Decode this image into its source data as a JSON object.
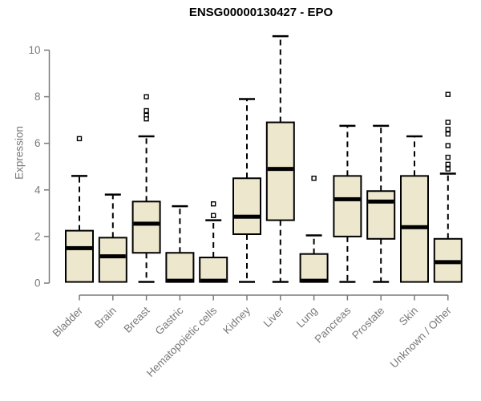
{
  "colors": {
    "background": "#FFFFFF",
    "title": "#000000",
    "axis": "#7A7A7A",
    "label": "#7A7A7A",
    "box_fill": "#EDE7CD",
    "box_stroke": "#000000",
    "median": "#000000",
    "whisker": "#000000",
    "outlier_fill": "#FFFFFF"
  },
  "chart_data": {
    "type": "boxplot",
    "title": "ENSG00000130427 - EPO",
    "xlabel": "",
    "ylabel": "Expression",
    "ylim": [
      0,
      10.7
    ],
    "yticks": [
      0,
      2,
      4,
      6,
      8,
      10
    ],
    "grid": false,
    "legend": "none",
    "categories": [
      "Bladder",
      "Brain",
      "Breast",
      "Gastric",
      "Hematopoietic cells",
      "Kidney",
      "Liver",
      "Lung",
      "Pancreas",
      "Prostate",
      "Skin",
      "Unknown / Other"
    ],
    "boxes": [
      {
        "label": "Bladder",
        "whisker_low": 0.05,
        "q1": 0.05,
        "median": 1.5,
        "q3": 2.25,
        "whisker_high": 4.6,
        "outliers": [
          6.2
        ]
      },
      {
        "label": "Brain",
        "whisker_low": 0.05,
        "q1": 0.05,
        "median": 1.15,
        "q3": 1.95,
        "whisker_high": 3.8,
        "outliers": []
      },
      {
        "label": "Breast",
        "whisker_low": 0.05,
        "q1": 1.3,
        "median": 2.55,
        "q3": 3.5,
        "whisker_high": 6.3,
        "outliers": [
          8.0,
          7.4,
          7.2,
          7.05
        ]
      },
      {
        "label": "Gastric",
        "whisker_low": 0.05,
        "q1": 0.05,
        "median": 0.1,
        "q3": 1.3,
        "whisker_high": 3.3,
        "outliers": []
      },
      {
        "label": "Hematopoietic cells",
        "whisker_low": 0.05,
        "q1": 0.05,
        "median": 0.1,
        "q3": 1.1,
        "whisker_high": 2.7,
        "outliers": [
          3.4,
          2.9
        ]
      },
      {
        "label": "Kidney",
        "whisker_low": 0.05,
        "q1": 2.1,
        "median": 2.85,
        "q3": 4.5,
        "whisker_high": 7.9,
        "outliers": []
      },
      {
        "label": "Liver",
        "whisker_low": 0.05,
        "q1": 2.7,
        "median": 4.9,
        "q3": 6.9,
        "whisker_high": 10.6,
        "outliers": []
      },
      {
        "label": "Lung",
        "whisker_low": 0.05,
        "q1": 0.05,
        "median": 0.1,
        "q3": 1.25,
        "whisker_high": 2.05,
        "outliers": [
          4.5
        ]
      },
      {
        "label": "Pancreas",
        "whisker_low": 0.05,
        "q1": 2.0,
        "median": 3.6,
        "q3": 4.6,
        "whisker_high": 6.75,
        "outliers": []
      },
      {
        "label": "Prostate",
        "whisker_low": 0.05,
        "q1": 1.9,
        "median": 3.5,
        "q3": 3.95,
        "whisker_high": 6.75,
        "outliers": []
      },
      {
        "label": "Skin",
        "whisker_low": 0.05,
        "q1": 0.05,
        "median": 2.4,
        "q3": 4.6,
        "whisker_high": 6.3,
        "outliers": []
      },
      {
        "label": "Unknown / Other",
        "whisker_low": 0.05,
        "q1": 0.05,
        "median": 0.9,
        "q3": 1.9,
        "whisker_high": 4.7,
        "outliers": [
          8.1,
          6.9,
          6.6,
          6.4,
          5.9,
          5.4,
          5.1,
          4.9
        ]
      }
    ]
  }
}
